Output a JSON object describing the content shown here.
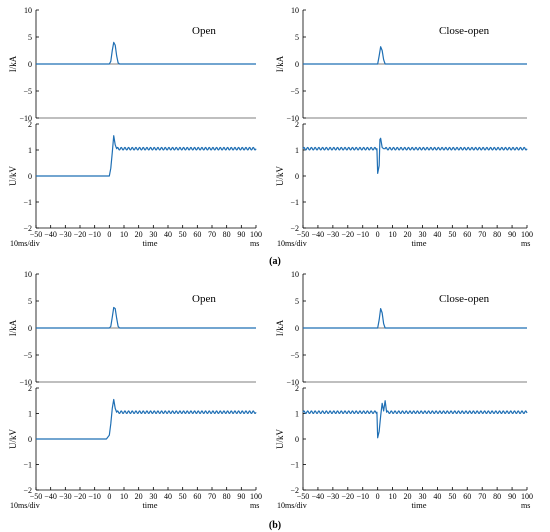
{
  "chart_data": [
    {
      "type": "line",
      "title": "Open",
      "ylabel": "I/kA",
      "ylim": [
        -10,
        10
      ],
      "yticks": [
        10,
        5,
        0,
        -5,
        -10
      ],
      "xlim": [
        -50,
        100
      ],
      "x": [
        -50,
        0,
        1,
        2,
        3,
        4,
        5,
        6,
        7,
        100
      ],
      "series": [
        {
          "values": [
            0,
            0,
            0.5,
            2.5,
            4.0,
            3.5,
            1.5,
            0.2,
            0,
            0
          ]
        }
      ],
      "color": "#1f6fb4"
    },
    {
      "type": "line",
      "ylabel": "U/kV",
      "ylim": [
        -2,
        2
      ],
      "yticks": [
        2,
        1,
        0,
        -1,
        -2
      ],
      "xlim": [
        -50,
        100
      ],
      "xticks": [
        -50,
        -40,
        -30,
        -20,
        -10,
        0,
        10,
        20,
        30,
        40,
        50,
        60,
        70,
        80,
        90,
        100
      ],
      "xlabel": "time",
      "xunit": "ms",
      "division": "10ms/div",
      "x": [
        -50,
        0,
        1,
        2,
        3,
        4,
        5
      ],
      "series": [
        {
          "values": [
            0,
            0,
            0.3,
            0.9,
            1.55,
            1.2,
            1.05
          ]
        }
      ],
      "ripple": {
        "from": 5,
        "to": 100,
        "mean": 1.05,
        "amplitude": 0.05,
        "period_ms": 2.5
      },
      "color": "#1f6fb4"
    },
    {
      "type": "line",
      "title": "Close-open",
      "ylabel": "I/kA",
      "ylim": [
        -10,
        10
      ],
      "yticks": [
        10,
        5,
        0,
        -5,
        -10
      ],
      "xlim": [
        -50,
        100
      ],
      "x": [
        -50,
        0,
        1,
        2,
        3,
        4,
        5,
        100
      ],
      "series": [
        {
          "values": [
            0,
            0,
            1.5,
            3.2,
            2.5,
            0.8,
            0,
            0
          ]
        }
      ],
      "color": "#1f6fb4"
    },
    {
      "type": "line",
      "ylabel": "U/kV",
      "ylim": [
        -2,
        2
      ],
      "yticks": [
        2,
        1,
        0,
        -1,
        -2
      ],
      "xlim": [
        -50,
        100
      ],
      "xticks": [
        -50,
        -40,
        -30,
        -20,
        -10,
        0,
        10,
        20,
        30,
        40,
        50,
        60,
        70,
        80,
        90,
        100
      ],
      "xlabel": "time",
      "xunit": "ms",
      "division": "10ms/div",
      "x": [
        -0.5,
        0,
        1,
        1.5,
        2,
        3,
        4,
        5
      ],
      "series": [
        {
          "values": [
            1.05,
            0.1,
            0.4,
            1.4,
            1.45,
            1.1,
            1.05,
            1.05
          ]
        }
      ],
      "ripple_segments": [
        {
          "from": -50,
          "to": -0.5
        },
        {
          "from": 5,
          "to": 100
        }
      ],
      "ripple": {
        "mean": 1.05,
        "amplitude": 0.05,
        "period_ms": 2.5
      },
      "color": "#1f6fb4"
    },
    {
      "type": "line",
      "title": "Open",
      "ylabel": "I/kA",
      "ylim": [
        -10,
        10
      ],
      "yticks": [
        10,
        5,
        0,
        -5,
        -10
      ],
      "xlim": [
        -50,
        100
      ],
      "x": [
        -50,
        0,
        1,
        2,
        3,
        4,
        5,
        6,
        7,
        100
      ],
      "series": [
        {
          "values": [
            0,
            0,
            0.3,
            2.0,
            3.8,
            3.6,
            1.8,
            0.3,
            0,
            0
          ]
        }
      ],
      "color": "#1f6fb4"
    },
    {
      "type": "line",
      "ylabel": "U/kV",
      "ylim": [
        -2,
        2
      ],
      "yticks": [
        2,
        1,
        0,
        -1,
        -2
      ],
      "xlim": [
        -50,
        100
      ],
      "xticks": [
        -50,
        -40,
        -30,
        -20,
        -10,
        0,
        10,
        20,
        30,
        40,
        50,
        60,
        70,
        80,
        90,
        100
      ],
      "xlabel": "time",
      "xunit": "ms",
      "division": "10ms/div",
      "x": [
        -50,
        -2,
        0,
        1,
        2,
        3,
        4,
        5
      ],
      "series": [
        {
          "values": [
            0,
            0,
            0.15,
            0.6,
            1.2,
            1.55,
            1.2,
            1.05
          ]
        }
      ],
      "ripple": {
        "from": 5,
        "to": 100,
        "mean": 1.05,
        "amplitude": 0.05,
        "period_ms": 2.5
      },
      "color": "#1f6fb4"
    },
    {
      "type": "line",
      "title": "Close-open",
      "ylabel": "I/kA",
      "ylim": [
        -10,
        10
      ],
      "yticks": [
        10,
        5,
        0,
        -5,
        -10
      ],
      "xlim": [
        -50,
        100
      ],
      "x": [
        -50,
        0,
        1,
        2,
        3,
        4,
        5,
        100
      ],
      "series": [
        {
          "values": [
            0,
            0,
            1.5,
            3.6,
            2.8,
            0.8,
            0,
            0
          ]
        }
      ],
      "color": "#1f6fb4"
    },
    {
      "type": "line",
      "ylabel": "U/kV",
      "ylim": [
        -2,
        2
      ],
      "yticks": [
        2,
        1,
        0,
        -1,
        -2
      ],
      "xlim": [
        -50,
        100
      ],
      "xticks": [
        -50,
        -40,
        -30,
        -20,
        -10,
        0,
        10,
        20,
        30,
        40,
        50,
        60,
        70,
        80,
        90,
        100
      ],
      "xlabel": "time",
      "xunit": "ms",
      "division": "10ms/div",
      "x": [
        -0.5,
        0,
        1,
        2,
        3,
        4,
        5,
        6
      ],
      "series": [
        {
          "values": [
            1.05,
            0.05,
            0.3,
            0.9,
            1.4,
            1.1,
            1.5,
            1.05
          ]
        }
      ],
      "ripple_segments": [
        {
          "from": -50,
          "to": -0.5
        },
        {
          "from": 6,
          "to": 100
        }
      ],
      "ripple": {
        "mean": 1.05,
        "amplitude": 0.05,
        "period_ms": 2.5
      },
      "color": "#1f6fb4"
    }
  ],
  "captions": [
    "(a)",
    "(b)"
  ]
}
